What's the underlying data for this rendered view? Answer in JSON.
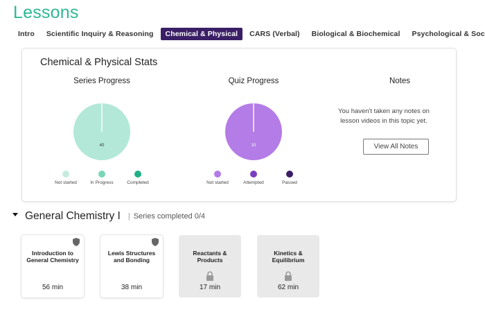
{
  "page": {
    "title": "Lessons"
  },
  "tabs": [
    {
      "label": "Intro",
      "active": false
    },
    {
      "label": "Scientific Inquiry & Reasoning",
      "active": false
    },
    {
      "label": "Chemical & Physical",
      "active": true
    },
    {
      "label": "CARS (Verbal)",
      "active": false
    },
    {
      "label": "Biological & Biochemical",
      "active": false
    },
    {
      "label": "Psychological & Social",
      "active": false
    }
  ],
  "stats": {
    "title": "Chemical & Physical Stats",
    "series_progress": {
      "title": "Series Progress",
      "pie_label": "40",
      "legend": [
        {
          "label": "Not started",
          "color": "#c6ecdf"
        },
        {
          "label": "In Progress",
          "color": "#79d6b6"
        },
        {
          "label": "Completed",
          "color": "#1fb085"
        }
      ]
    },
    "quiz_progress": {
      "title": "Quiz Progress",
      "pie_label": "10",
      "legend": [
        {
          "label": "Not started",
          "color": "#b47ce6"
        },
        {
          "label": "Attempted",
          "color": "#7a3fc0"
        },
        {
          "label": "Passed",
          "color": "#3a1f66"
        }
      ]
    },
    "notes": {
      "title": "Notes",
      "message": "You haven't taken any notes on lesson videos in this topic yet.",
      "button_label": "View All Notes"
    }
  },
  "chart_data": [
    {
      "type": "pie",
      "title": "Series Progress",
      "series": [
        {
          "values": [
            40,
            0,
            0
          ]
        }
      ],
      "categories": [
        "Not started",
        "In Progress",
        "Completed"
      ],
      "colors": [
        "#b3e8d8",
        "#79d6b6",
        "#1fb085"
      ]
    },
    {
      "type": "pie",
      "title": "Quiz Progress",
      "series": [
        {
          "values": [
            10,
            0,
            0
          ]
        }
      ],
      "categories": [
        "Not started",
        "Attempted",
        "Passed"
      ],
      "colors": [
        "#b47ce6",
        "#7a3fc0",
        "#3a1f66"
      ]
    }
  ],
  "series": {
    "title": "General Chemistry I",
    "separator": "|",
    "status": "Series completed 0/4",
    "lessons": [
      {
        "title": "Introduction to General Chemistry",
        "duration": "56 min",
        "locked": false,
        "icon": "shield-icon"
      },
      {
        "title": "Lewis Structures and Bonding",
        "duration": "38 min",
        "locked": false,
        "icon": "shield-icon"
      },
      {
        "title": "Reactants & Products",
        "duration": "17 min",
        "locked": true,
        "icon": "lock-icon"
      },
      {
        "title": "Kinetics & Equilibrium",
        "duration": "62 min",
        "locked": true,
        "icon": "lock-icon"
      }
    ]
  },
  "colors": {
    "accent": "#2fb894",
    "active_tab": "#3a1f66"
  }
}
